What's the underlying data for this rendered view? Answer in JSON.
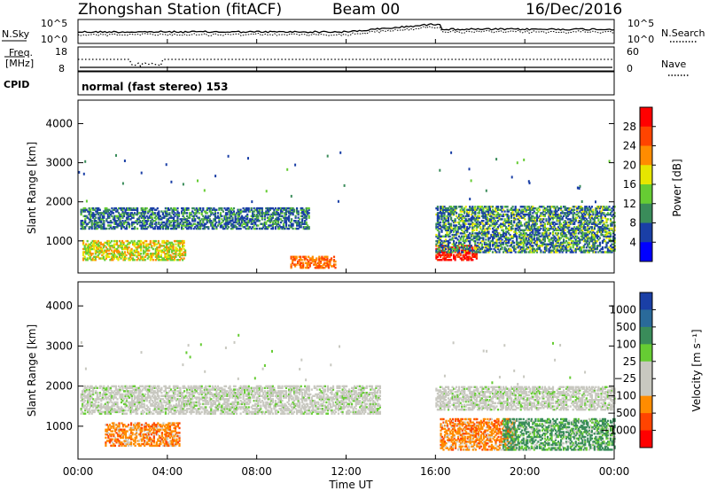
{
  "header": {
    "station": "Zhongshan Station (fitACF)",
    "beam": "Beam 00",
    "date": "16/Dec/2016"
  },
  "noise_panel": {
    "left_label": "N.Sky",
    "right_label": "N.Search",
    "left_ticks": [
      "10^5",
      "10^0"
    ],
    "right_ticks": [
      "10^5",
      "10^0"
    ]
  },
  "freq_panel": {
    "left_label_line1": "Freq.",
    "left_label_line2": "[MHz]",
    "right_label": "Nave",
    "left_ticks": [
      "18",
      "8"
    ],
    "right_ticks": [
      "60",
      "0"
    ]
  },
  "cpid": {
    "label": "CPID",
    "value": "normal (fast stereo) 153"
  },
  "x_axis": {
    "label": "Time UT",
    "ticks": [
      "00:00",
      "04:00",
      "08:00",
      "12:00",
      "16:00",
      "20:00",
      "00:00"
    ]
  },
  "power_colorbar": {
    "label": "Power [dB]",
    "ticks": [
      "28",
      "24",
      "20",
      "16",
      "12",
      "8",
      "4"
    ],
    "colors": [
      "#ff0000",
      "#ff4400",
      "#ff8c00",
      "#e6e600",
      "#66cc33",
      "#3a8c5a",
      "#1a3fa6",
      "#0000ff"
    ]
  },
  "velocity_colorbar": {
    "label": "Velocity [m s⁻¹]",
    "ticks": [
      "1000",
      "500",
      "100",
      "25",
      "−25",
      "−100",
      "−500",
      "−1000"
    ],
    "colors": [
      "#1a3fa6",
      "#2a6a9a",
      "#3a8c5a",
      "#66cc33",
      "#c8c8c0",
      "#c8c8c0",
      "#ff8c00",
      "#ff4400",
      "#ff0000"
    ]
  },
  "chart_data": [
    {
      "type": "heatmap",
      "title": "Power",
      "xlabel": "Time UT",
      "ylabel": "Slant Range [km]",
      "x_ticks": [
        "00:00",
        "04:00",
        "08:00",
        "12:00",
        "16:00",
        "20:00",
        "00:00"
      ],
      "y_ticks": [
        1000,
        2000,
        3000,
        4000
      ],
      "xlim": [
        0,
        24
      ],
      "ylim": [
        180,
        4600
      ],
      "colorbar_label": "Power [dB]",
      "colorbar_ticks": [
        4,
        8,
        12,
        16,
        20,
        24,
        28
      ],
      "echo_regions": [
        {
          "t": [
            0.1,
            10.3
          ],
          "range": [
            1300,
            1850
          ],
          "level": "8-16 dB"
        },
        {
          "t": [
            0.2,
            4.8
          ],
          "range": [
            500,
            1000
          ],
          "level": "16-28 dB"
        },
        {
          "t": [
            9.5,
            11.5
          ],
          "range": [
            300,
            600
          ],
          "level": "20-28 dB"
        },
        {
          "t": [
            16.0,
            17.8
          ],
          "range": [
            500,
            900
          ],
          "level": "24-28 dB"
        },
        {
          "t": [
            16.0,
            24.0
          ],
          "range": [
            700,
            1900
          ],
          "level": "8-20 dB"
        }
      ]
    },
    {
      "type": "heatmap",
      "title": "Velocity",
      "xlabel": "Time UT",
      "ylabel": "Slant Range [km]",
      "x_ticks": [
        "00:00",
        "04:00",
        "08:00",
        "12:00",
        "16:00",
        "20:00",
        "00:00"
      ],
      "y_ticks": [
        1000,
        2000,
        3000,
        4000
      ],
      "xlim": [
        0,
        24
      ],
      "ylim": [
        180,
        4600
      ],
      "colorbar_label": "Velocity [m s⁻¹]",
      "colorbar_ticks": [
        1000,
        500,
        100,
        25,
        -25,
        -100,
        -500,
        -1000
      ],
      "echo_regions": [
        {
          "t": [
            0.1,
            13.5
          ],
          "range": [
            1300,
            2000
          ],
          "velocity": "-25 to 25"
        },
        {
          "t": [
            1.2,
            4.5
          ],
          "range": [
            500,
            1100
          ],
          "velocity": "-500 to -100"
        },
        {
          "t": [
            16.2,
            19.5
          ],
          "range": [
            400,
            1200
          ],
          "velocity": "-500 to -100"
        },
        {
          "t": [
            19.0,
            24.0
          ],
          "range": [
            400,
            1200
          ],
          "velocity": "100 to 500"
        },
        {
          "t": [
            16.0,
            24.0
          ],
          "range": [
            1400,
            2000
          ],
          "velocity": "-25 to 25"
        }
      ]
    }
  ]
}
